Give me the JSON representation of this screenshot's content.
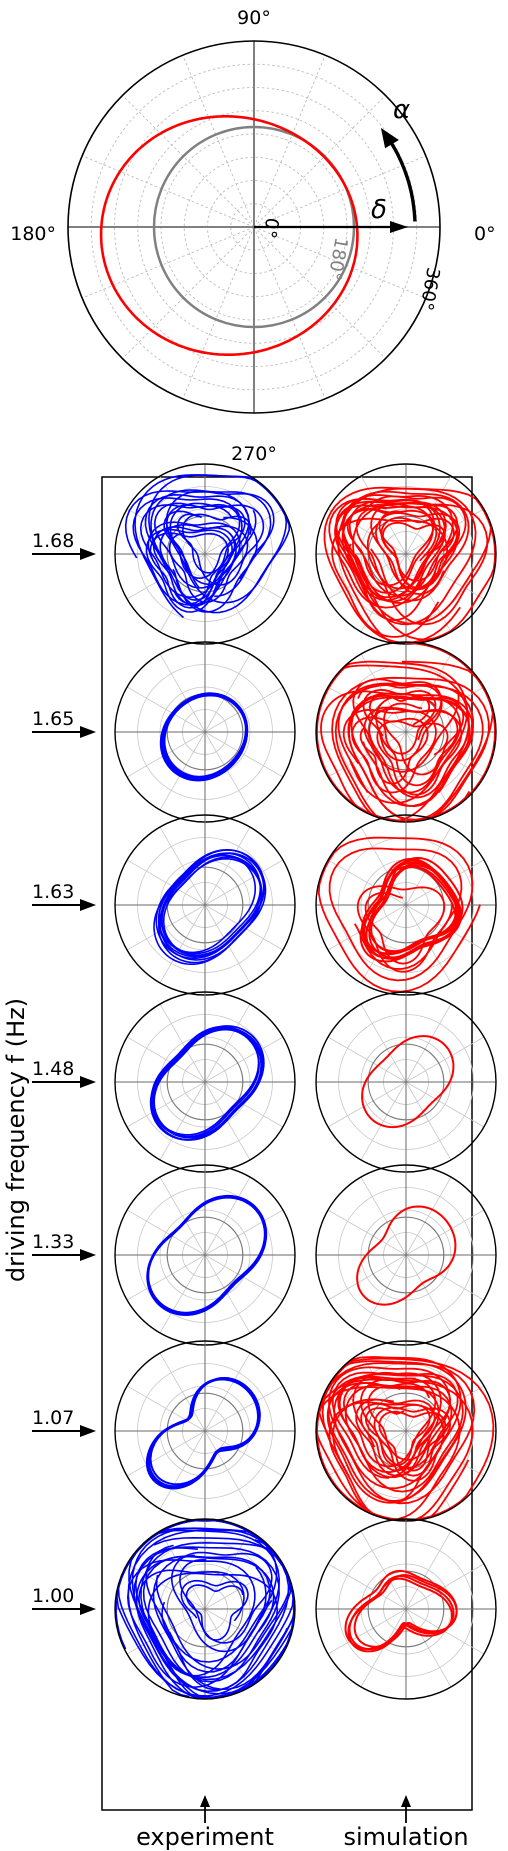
{
  "chart_data": {
    "type": "polar",
    "main_polar": {
      "angle_tick_labels": [
        "0°",
        "90°",
        "180°",
        "270°"
      ],
      "radial_tick_labels": [
        "0°",
        "180°",
        "360°"
      ],
      "symbols": {
        "alpha": "α",
        "delta": "δ"
      },
      "reference_circle_radius_deg": 180,
      "red_curve": {
        "name": "",
        "color": "#ff0000"
      }
    },
    "panel_grid": {
      "ylabel": "driving frequency f (Hz)",
      "column_labels": [
        "experiment",
        "simulation"
      ],
      "frequencies": [
        "1.68",
        "1.65",
        "1.63",
        "1.48",
        "1.33",
        "1.07",
        "1.00"
      ],
      "experiment_color": "#0000ff",
      "simulation_color": "#ff0000"
    }
  }
}
